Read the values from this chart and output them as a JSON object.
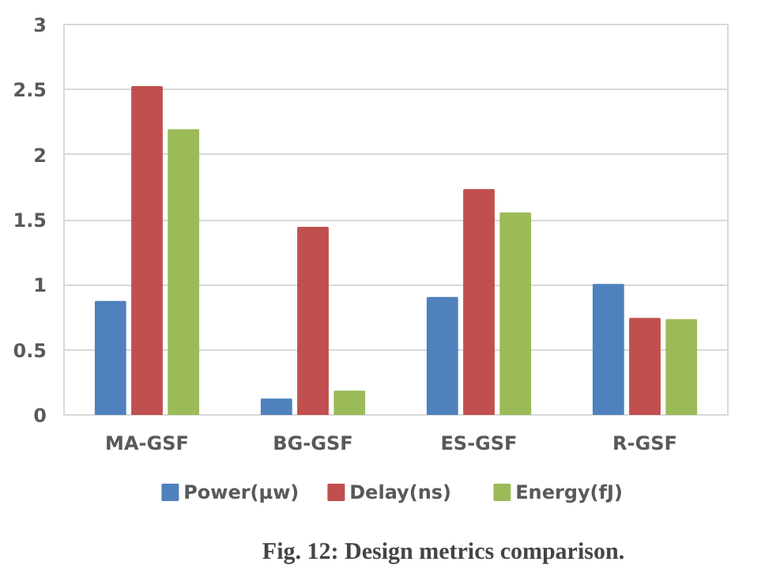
{
  "chart_data": {
    "type": "bar",
    "categories": [
      "MA-GSF",
      "BG-GSF",
      "ES-GSF",
      "R-GSF"
    ],
    "series": [
      {
        "name": "Power(µw)",
        "color": "#4f81bd",
        "values": [
          0.87,
          0.12,
          0.9,
          1.0
        ]
      },
      {
        "name": "Delay(ns)",
        "color": "#c0504d",
        "values": [
          2.52,
          1.44,
          1.73,
          0.74
        ]
      },
      {
        "name": "Energy(fJ)",
        "color": "#9bbb59",
        "values": [
          2.19,
          0.18,
          1.55,
          0.73
        ]
      }
    ],
    "ylim": [
      0,
      3
    ],
    "yticks": [
      0,
      0.5,
      1,
      1.5,
      2,
      2.5,
      3
    ],
    "grid": "y",
    "legend": "bottom",
    "annotations": [
      "Fig. 12: Design metrics comparison."
    ]
  }
}
